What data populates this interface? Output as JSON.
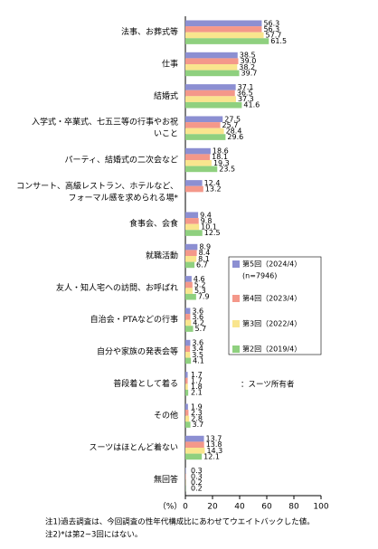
{
  "chart_data": {
    "type": "hbar",
    "categories": [
      [
        "法事、お葬式等"
      ],
      [
        "仕事"
      ],
      [
        "結婚式"
      ],
      [
        "入学式・卒業式、七五三等の行事やお祝",
        "いこと"
      ],
      [
        "パーティ、結婚式の二次会など"
      ],
      [
        "コンサート、高級レストラン、ホテルなど、",
        "フォーマル感を求められる場*"
      ],
      [
        "食事会、会食"
      ],
      [
        "就職活動"
      ],
      [
        "友人・知人宅への訪問、お呼ばれ"
      ],
      [
        "自治会・PTAなどの行事"
      ],
      [
        "自分や家族の発表会等"
      ],
      [
        "普段着として着る"
      ],
      [
        "その他"
      ],
      [
        "スーツはほとんど着ない"
      ],
      [
        "無回答"
      ]
    ],
    "series": [
      {
        "name": "第5回（2024/4）",
        "color": "#8c8fd2",
        "values": [
          56.3,
          38.5,
          37.1,
          27.5,
          18.6,
          12.4,
          9.4,
          8.9,
          4.6,
          3.6,
          3.6,
          1.7,
          1.9,
          13.7,
          0.3
        ]
      },
      {
        "name": "第4回（2023/4）",
        "color": "#f4988a",
        "values": [
          56.3,
          39.0,
          36.5,
          25.7,
          18.1,
          13.2,
          9.8,
          8.4,
          5.2,
          3.6,
          3.4,
          1.7,
          2.3,
          13.8,
          0.3
        ],
        "value_labels": [
          "56.3",
          "39.0",
          "36.5",
          "25.7",
          "18.1",
          "13.2",
          "9.8",
          "8.4",
          "5.2",
          "3.6",
          "3.4",
          "1.7",
          "2.3",
          "13.8",
          "0.3"
        ]
      },
      {
        "name": "第3回（2022/4）",
        "color": "#f9e58e",
        "values": [
          57.7,
          38.2,
          37.3,
          28.4,
          19.3,
          null,
          10.1,
          8.1,
          5.3,
          4.2,
          3.5,
          1.8,
          2.8,
          14.3,
          0.2
        ]
      },
      {
        "name": "第2回（2019/4）",
        "color": "#8fd07f",
        "values": [
          61.5,
          39.7,
          41.6,
          29.6,
          23.5,
          null,
          12.5,
          6.7,
          7.9,
          5.7,
          4.1,
          2.1,
          3.7,
          12.1,
          0.2
        ]
      }
    ],
    "legend_note": "(n=7946)",
    "annotation": "：スーツ所有者",
    "xlabel": "（%）",
    "xlim": [
      0,
      100
    ],
    "xticks": [
      0,
      20,
      40,
      60,
      80,
      100
    ],
    "notes": [
      "注1)過去調査は、今回調査の性年代構成比にあわせてウエイトバックした値。",
      "注2)*は第2~3回にはない。"
    ]
  }
}
